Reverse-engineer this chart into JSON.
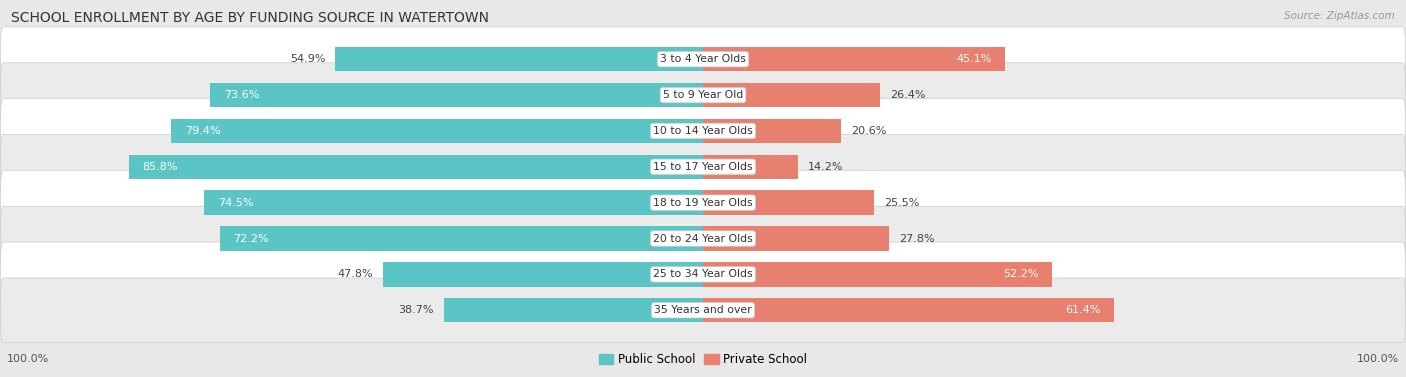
{
  "title": "SCHOOL ENROLLMENT BY AGE BY FUNDING SOURCE IN WATERTOWN",
  "source": "Source: ZipAtlas.com",
  "categories": [
    "3 to 4 Year Olds",
    "5 to 9 Year Old",
    "10 to 14 Year Olds",
    "15 to 17 Year Olds",
    "18 to 19 Year Olds",
    "20 to 24 Year Olds",
    "25 to 34 Year Olds",
    "35 Years and over"
  ],
  "public_values": [
    54.9,
    73.6,
    79.4,
    85.8,
    74.5,
    72.2,
    47.8,
    38.7
  ],
  "private_values": [
    45.1,
    26.4,
    20.6,
    14.2,
    25.5,
    27.8,
    52.2,
    61.4
  ],
  "public_color": "#5BC4C4",
  "private_color": "#E88070",
  "bg_color": "#E8E8E8",
  "row_colors": [
    "#FFFFFF",
    "#EBEBEB"
  ],
  "x_left_label": "100.0%",
  "x_right_label": "100.0%",
  "title_fontsize": 10,
  "source_fontsize": 7.5,
  "value_fontsize": 8,
  "cat_fontsize": 7.8,
  "legend_fontsize": 8.5,
  "axis_label_fontsize": 8,
  "pub_threshold_inside": 60,
  "priv_threshold_inside": 40
}
